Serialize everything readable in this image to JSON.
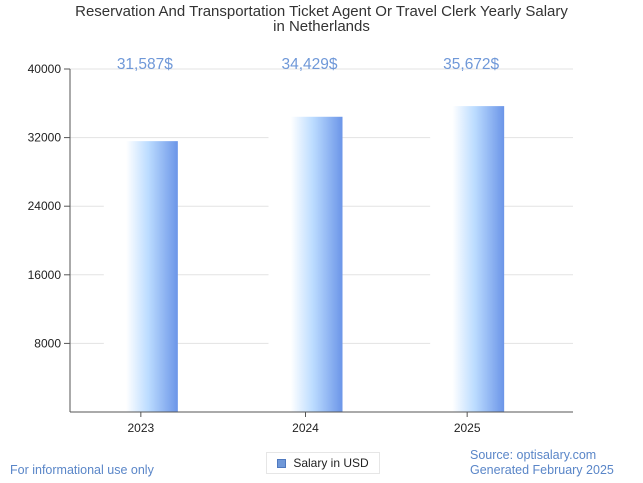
{
  "chart_data": {
    "type": "bar",
    "title_lines": [
      "Reservation And Transportation Ticket Agent Or Travel Clerk Yearly Salary",
      "in Netherlands"
    ],
    "categories": [
      "2023",
      "2024",
      "2025"
    ],
    "series": [
      {
        "name": "Salary in USD",
        "values": [
          31587,
          34429,
          35672
        ]
      }
    ],
    "data_labels": [
      "31,587$",
      "34,429$",
      "35,672$"
    ],
    "ylim": [
      0,
      40000
    ],
    "yticks": [
      8000,
      16000,
      24000,
      32000,
      40000
    ],
    "xlabel": "",
    "ylabel": "",
    "grid": true,
    "legend_position": "bottom-center",
    "colors": {
      "bar_light": "#ffffff",
      "bar_mid": "#bcdcff",
      "bar_dark": "#6b95e8",
      "label": "#6f98d8",
      "axis": "#555555",
      "grid": "#e3e3e3",
      "tick_text": "#222222"
    }
  },
  "footer": {
    "left": "For informational use only",
    "source": "Source: optisalary.com",
    "generated": "Generated February 2025"
  }
}
